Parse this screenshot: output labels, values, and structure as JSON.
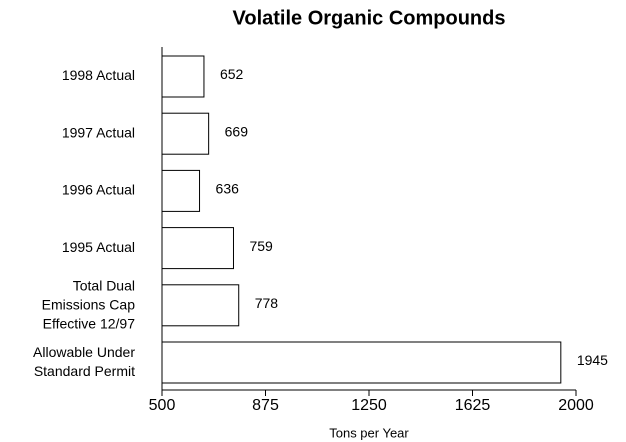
{
  "chart_data": {
    "type": "bar",
    "orientation": "horizontal",
    "title": "Volatile Organic Compounds",
    "x_label": "Tons per Year",
    "categories": [
      "1998 Actual",
      "1997 Actual",
      "1996 Actual",
      "1995 Actual",
      "Total Dual\nEmissions Cap\nEffective 12/97",
      "Allowable Under\nStandard Permit"
    ],
    "values": [
      652,
      669,
      636,
      759,
      778,
      1945
    ],
    "color": "#ffffff",
    "xlim": [
      500,
      2000
    ],
    "xticks": [
      500,
      875,
      1250,
      1625,
      2000
    ],
    "grid": false
  }
}
